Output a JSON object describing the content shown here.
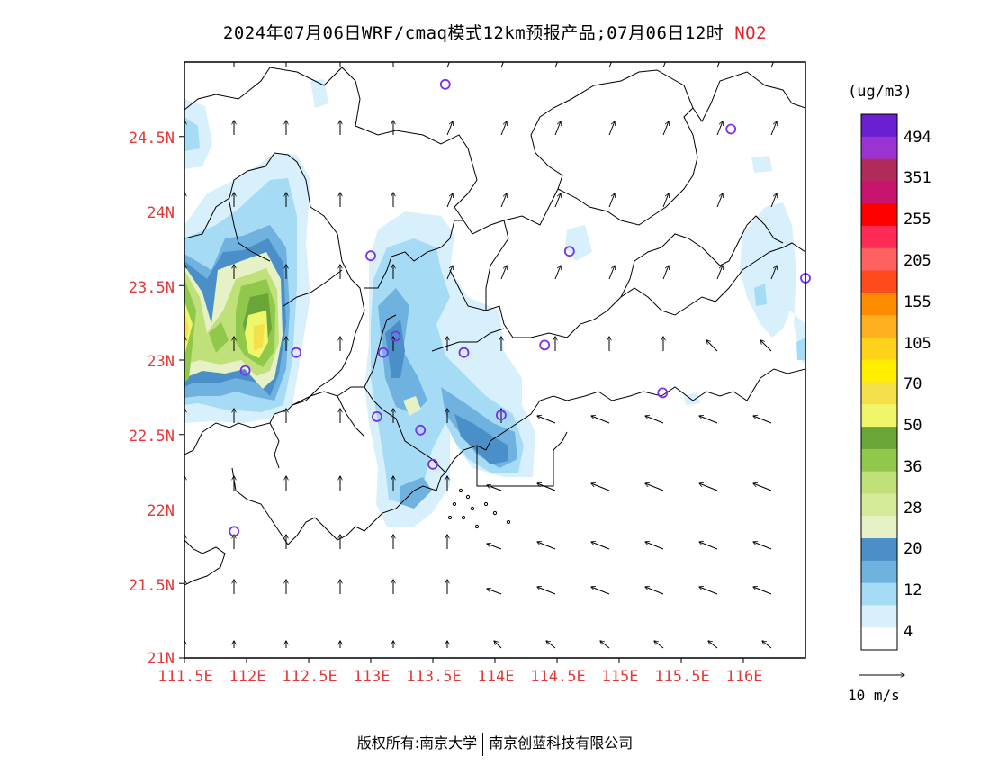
{
  "title": {
    "main": "2024年07月06日WRF/cmaq模式12km预报产品;07月06日12时",
    "pollutant": "NO2"
  },
  "map": {
    "lat_labels": [
      "24.5N",
      "24N",
      "23.5N",
      "23N",
      "22.5N",
      "22N",
      "21.5N",
      "21N"
    ],
    "lon_labels": [
      "111.5E",
      "112E",
      "112.5E",
      "113E",
      "113.5E",
      "114E",
      "114.5E",
      "115E",
      "115.5E",
      "116E"
    ],
    "lat_values": [
      24.5,
      24,
      23.5,
      23,
      22.5,
      22,
      21.5,
      21
    ],
    "lon_values": [
      111.5,
      112,
      112.5,
      113,
      113.5,
      114,
      114.5,
      115,
      115.5,
      116
    ],
    "extent": {
      "lon_min": 111.5,
      "lon_max": 116.5,
      "lat_min": 21,
      "lat_max": 25
    }
  },
  "colorbar": {
    "unit": "(ug/m3)",
    "labels": [
      "494",
      "351",
      "255",
      "205",
      "155",
      "105",
      "70",
      "50",
      "36",
      "28",
      "20",
      "12",
      "4"
    ],
    "colors": [
      "#6a1fd1",
      "#9b32d4",
      "#b02b5a",
      "#c8146e",
      "#ff0000",
      "#ff2a55",
      "#ff6060",
      "#ff4b1e",
      "#ff8b00",
      "#ffb020",
      "#ffd21a",
      "#ffee00",
      "#f4e049",
      "#f0f66a",
      "#6aa538",
      "#8fc84a",
      "#c0e07a",
      "#d6eb9a",
      "#e7f1c6",
      "#4a8fc7",
      "#6fb2e0",
      "#a6dbf5",
      "#d7f0fb",
      "#ffffff"
    ],
    "wind_label": "10 m/s"
  },
  "stations": [
    {
      "lon": 113.6,
      "lat": 24.85
    },
    {
      "lon": 115.9,
      "lat": 24.55
    },
    {
      "lon": 113.0,
      "lat": 23.7
    },
    {
      "lon": 114.6,
      "lat": 23.73
    },
    {
      "lon": 116.5,
      "lat": 23.55
    },
    {
      "lon": 112.4,
      "lat": 23.05
    },
    {
      "lon": 113.2,
      "lat": 23.16
    },
    {
      "lon": 113.1,
      "lat": 23.05
    },
    {
      "lon": 113.75,
      "lat": 23.05
    },
    {
      "lon": 114.4,
      "lat": 23.1
    },
    {
      "lon": 111.99,
      "lat": 22.93
    },
    {
      "lon": 113.05,
      "lat": 22.62
    },
    {
      "lon": 113.4,
      "lat": 22.53
    },
    {
      "lon": 114.05,
      "lat": 22.63
    },
    {
      "lon": 115.35,
      "lat": 22.78
    },
    {
      "lon": 113.5,
      "lat": 22.3
    },
    {
      "lon": 111.9,
      "lat": 21.85
    }
  ],
  "footer": {
    "left": "版权所有:南京大学",
    "right": "南京创蓝科技有限公司"
  }
}
